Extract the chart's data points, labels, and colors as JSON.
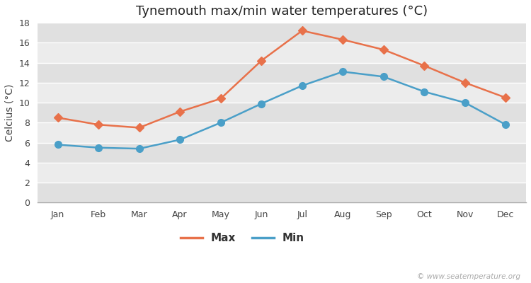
{
  "title": "Tynemouth max/min water temperatures (°C)",
  "ylabel": "Celcius (°C)",
  "months": [
    "Jan",
    "Feb",
    "Mar",
    "Apr",
    "May",
    "Jun",
    "Jul",
    "Aug",
    "Sep",
    "Oct",
    "Nov",
    "Dec"
  ],
  "max_values": [
    8.5,
    7.8,
    7.5,
    9.1,
    10.4,
    14.2,
    17.2,
    16.3,
    15.3,
    13.7,
    12.0,
    10.5
  ],
  "min_values": [
    5.8,
    5.5,
    5.4,
    6.3,
    8.0,
    9.9,
    11.7,
    13.1,
    12.6,
    11.1,
    10.0,
    7.8
  ],
  "max_color": "#E8714A",
  "min_color": "#4A9FC8",
  "fig_bg_color": "#FFFFFF",
  "plot_bg_color": "#ECECEC",
  "band_color": "#E0E0E0",
  "grid_color": "#FFFFFF",
  "ylim": [
    0,
    18
  ],
  "yticks": [
    0,
    2,
    4,
    6,
    8,
    10,
    12,
    14,
    16,
    18
  ],
  "watermark": "© www.seatemperature.org",
  "title_fontsize": 13,
  "label_fontsize": 10,
  "tick_fontsize": 9,
  "legend_fontsize": 11
}
